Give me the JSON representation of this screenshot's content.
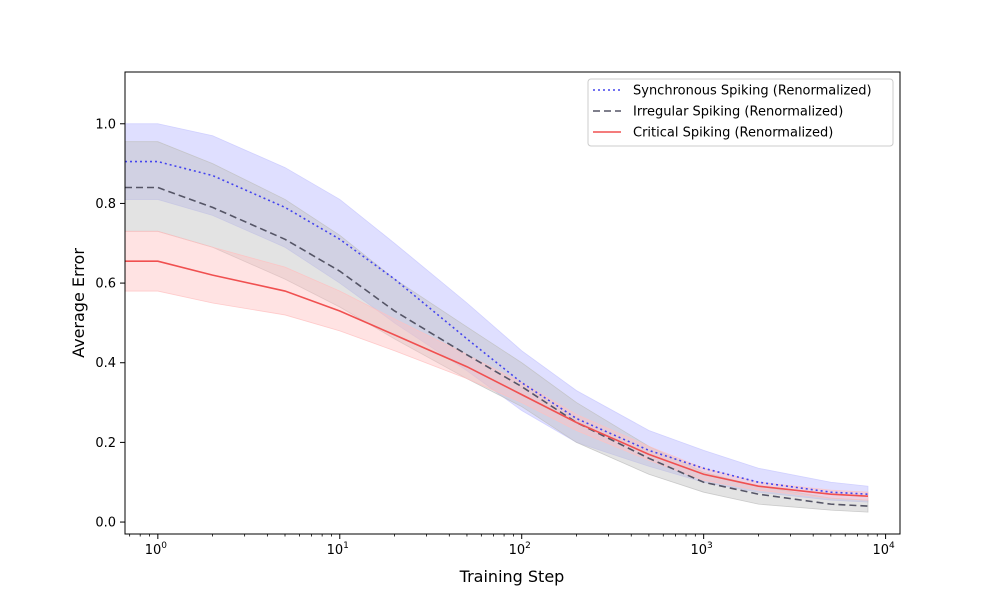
{
  "chart_data": {
    "type": "line",
    "xlabel": "Training Step",
    "ylabel": "Average Error",
    "xscale": "log",
    "xlim": [
      0.66,
      12000
    ],
    "ylim": [
      -0.03,
      1.13
    ],
    "x_ticks": [
      {
        "value": 1,
        "base": "10",
        "exp": "0"
      },
      {
        "value": 10,
        "base": "10",
        "exp": "1"
      },
      {
        "value": 100,
        "base": "10",
        "exp": "2"
      },
      {
        "value": 1000,
        "base": "10",
        "exp": "3"
      },
      {
        "value": 10000,
        "base": "10",
        "exp": "4"
      }
    ],
    "y_ticks": [
      {
        "value": 0.0,
        "label": "0.0"
      },
      {
        "value": 0.2,
        "label": "0.2"
      },
      {
        "value": 0.4,
        "label": "0.4"
      },
      {
        "value": 0.6,
        "label": "0.6"
      },
      {
        "value": 0.8,
        "label": "0.8"
      },
      {
        "value": 1.0,
        "label": "1.0"
      }
    ],
    "grid": false,
    "legend_position": "top-right",
    "x": [
      0.66,
      1,
      2,
      5,
      10,
      20,
      50,
      100,
      200,
      500,
      1000,
      2000,
      5000,
      8000
    ],
    "series": [
      {
        "name": "Synchronous Spiking (Renormalized)",
        "color": "#4444ee",
        "style": "dotted",
        "values": [
          0.905,
          0.905,
          0.87,
          0.79,
          0.71,
          0.61,
          0.46,
          0.35,
          0.26,
          0.18,
          0.135,
          0.1,
          0.075,
          0.07
        ],
        "upper": [
          1.0,
          1.0,
          0.97,
          0.89,
          0.81,
          0.7,
          0.55,
          0.43,
          0.33,
          0.23,
          0.18,
          0.135,
          0.1,
          0.09
        ],
        "lower": [
          0.81,
          0.81,
          0.77,
          0.69,
          0.6,
          0.5,
          0.38,
          0.28,
          0.2,
          0.14,
          0.1,
          0.075,
          0.055,
          0.05
        ],
        "fill": "#c9c9ff",
        "fill_opacity": 0.6
      },
      {
        "name": "Irregular Spiking (Renormalized)",
        "color": "#555566",
        "style": "dashed",
        "values": [
          0.84,
          0.84,
          0.79,
          0.71,
          0.63,
          0.53,
          0.42,
          0.34,
          0.25,
          0.16,
          0.1,
          0.07,
          0.045,
          0.04
        ],
        "upper": [
          0.955,
          0.955,
          0.9,
          0.81,
          0.72,
          0.61,
          0.49,
          0.4,
          0.3,
          0.19,
          0.125,
          0.09,
          0.06,
          0.055
        ],
        "lower": [
          0.73,
          0.73,
          0.69,
          0.61,
          0.54,
          0.46,
          0.36,
          0.29,
          0.2,
          0.12,
          0.075,
          0.045,
          0.03,
          0.025
        ],
        "fill": "#c0c0c0",
        "fill_opacity": 0.45
      },
      {
        "name": "Critical Spiking (Renormalized)",
        "color": "#f05050",
        "style": "solid",
        "values": [
          0.655,
          0.655,
          0.62,
          0.58,
          0.53,
          0.47,
          0.39,
          0.32,
          0.25,
          0.17,
          0.12,
          0.09,
          0.07,
          0.065
        ],
        "upper": [
          0.73,
          0.73,
          0.69,
          0.64,
          0.58,
          0.51,
          0.42,
          0.35,
          0.27,
          0.19,
          0.135,
          0.1,
          0.08,
          0.075
        ],
        "lower": [
          0.58,
          0.58,
          0.55,
          0.52,
          0.48,
          0.43,
          0.36,
          0.3,
          0.23,
          0.155,
          0.105,
          0.08,
          0.06,
          0.055
        ],
        "fill": "#ffc0c0",
        "fill_opacity": 0.45
      }
    ]
  }
}
